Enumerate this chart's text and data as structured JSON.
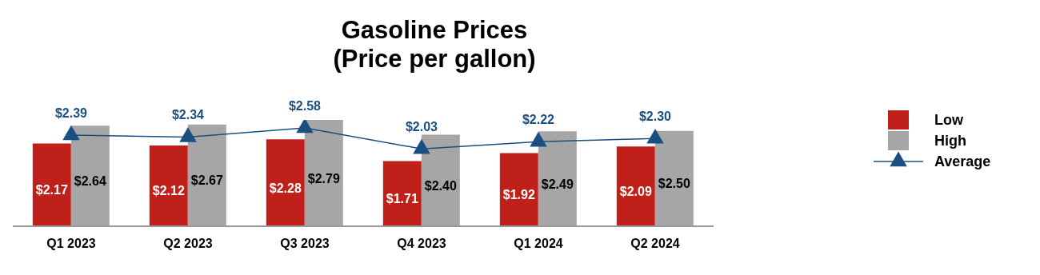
{
  "chart_data": {
    "type": "bar",
    "title": "Gasoline Prices",
    "subtitle": "(Price per gallon)",
    "categories": [
      "Q1 2023",
      "Q2 2023",
      "Q3 2023",
      "Q4 2023",
      "Q1 2024",
      "Q2 2024"
    ],
    "series": [
      {
        "name": "Low",
        "color": "#c0201a",
        "values": [
          2.17,
          2.12,
          2.28,
          1.71,
          1.92,
          2.09
        ],
        "value_labels": [
          "$2.17",
          "$2.12",
          "$2.28",
          "$1.71",
          "$1.92",
          "$2.09"
        ]
      },
      {
        "name": "High",
        "color": "#a6a6a6",
        "values": [
          2.64,
          2.67,
          2.79,
          2.4,
          2.49,
          2.5
        ],
        "value_labels": [
          "$2.64",
          "$2.67",
          "$2.79",
          "$2.40",
          "$2.49",
          "$2.50"
        ]
      },
      {
        "name": "Average",
        "type": "line",
        "color": "#1b4f80",
        "marker": "triangle",
        "values": [
          2.39,
          2.34,
          2.58,
          2.03,
          2.22,
          2.3
        ],
        "value_labels": [
          "$2.39",
          "$2.34",
          "$2.58",
          "$2.03",
          "$2.22",
          "$2.30"
        ]
      }
    ],
    "tick_labels": "x",
    "grid": false,
    "legend": "right"
  }
}
